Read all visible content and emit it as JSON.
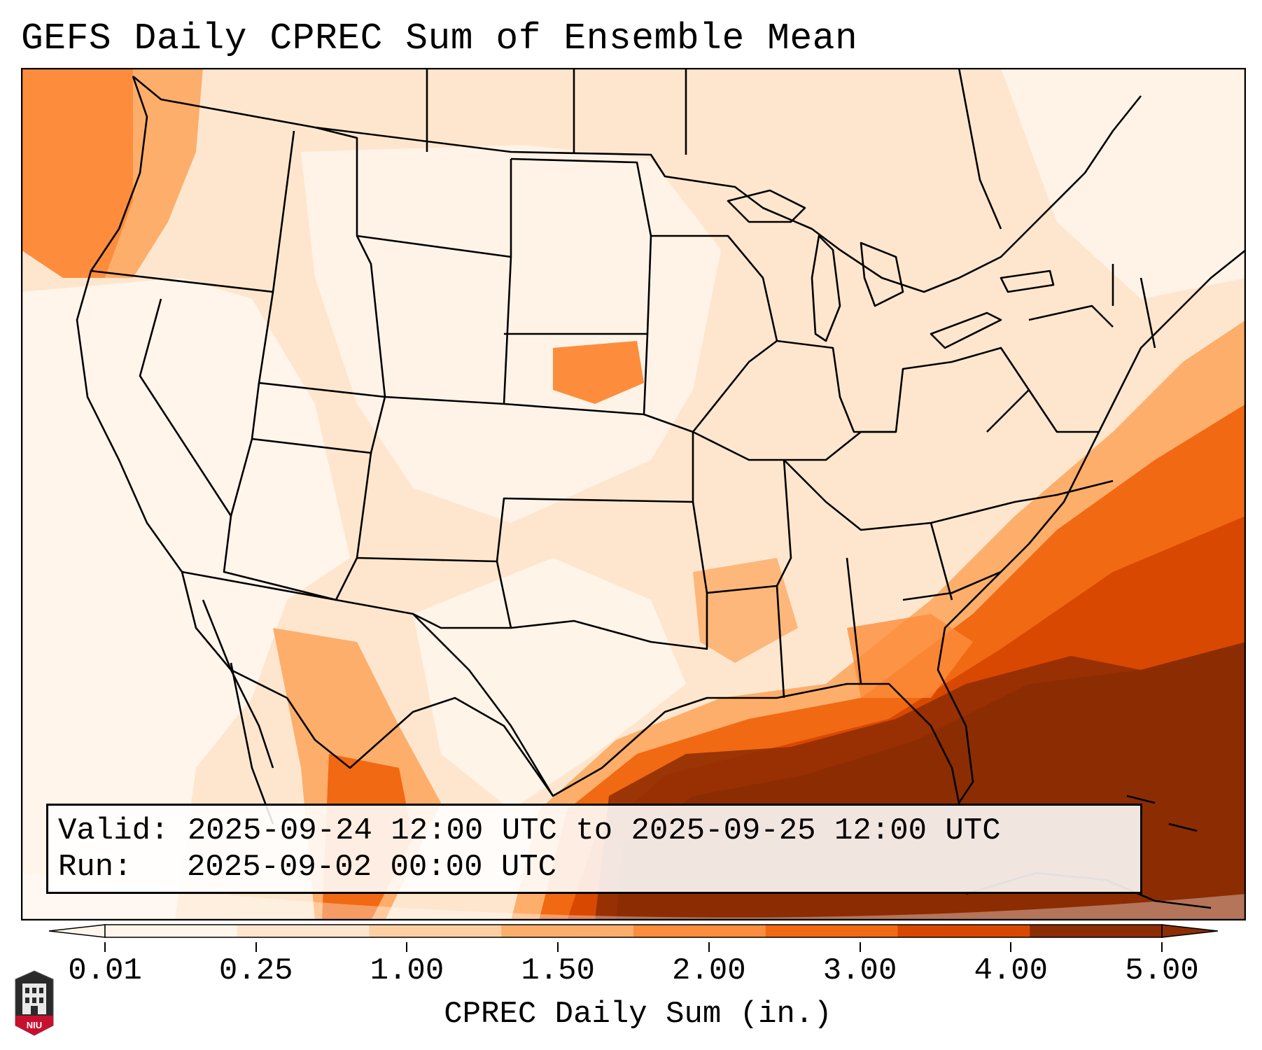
{
  "title": "GEFS Daily CPREC Sum of Ensemble Mean",
  "info": {
    "valid_label": "Valid:",
    "valid_value": "2025-09-24 12:00 UTC to 2025-09-25 12:00 UTC",
    "run_label": "Run:",
    "run_value": "2025-09-02 00:00 UTC"
  },
  "colorbar": {
    "label": "CPREC Daily Sum (in.)",
    "ticks": [
      "0.01",
      "0.25",
      "1.00",
      "1.50",
      "2.00",
      "3.00",
      "4.00",
      "5.00"
    ],
    "colors": [
      "#fff5eb",
      "#fee6ce",
      "#fdd0a2",
      "#fdae6b",
      "#fd8d3c",
      "#f16913",
      "#d94801",
      "#8c2d04"
    ]
  },
  "logo": {
    "text": "NIU"
  }
}
